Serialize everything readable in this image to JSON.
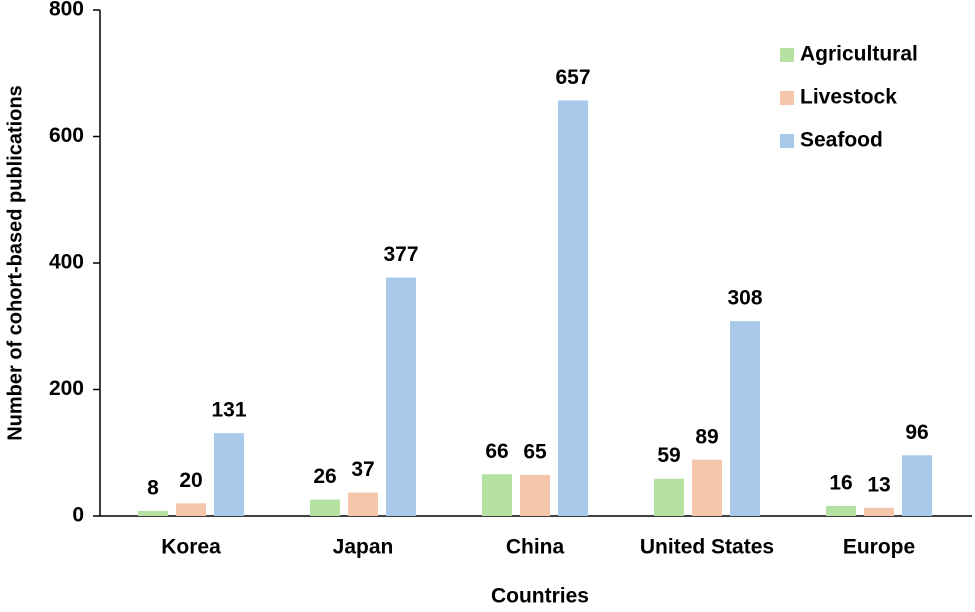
{
  "chart_data": {
    "type": "bar",
    "x_label": "Countries",
    "y_label": "Number of cohort-based publications",
    "categories": [
      "Korea",
      "Japan",
      "China",
      "United States",
      "Europe"
    ],
    "series": [
      {
        "name": "Agricultural",
        "color": "#b5e2a3",
        "values": [
          8,
          26,
          66,
          59,
          16
        ]
      },
      {
        "name": "Livestock",
        "color": "#f6c6aa",
        "values": [
          20,
          37,
          65,
          89,
          13
        ]
      },
      {
        "name": "Seafood",
        "color": "#a9c9eb",
        "values": [
          131,
          377,
          657,
          308,
          96
        ]
      }
    ],
    "ylim": [
      0,
      800
    ],
    "yticks": [
      0,
      200,
      400,
      600,
      800
    ],
    "legend": "top-right",
    "grid": false
  }
}
